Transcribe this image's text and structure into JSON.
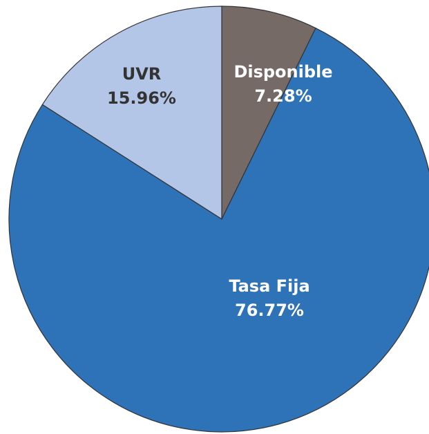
{
  "chart_data": {
    "type": "pie",
    "categories": [
      "Disponible",
      "Tasa Fija",
      "UVR"
    ],
    "values": [
      7.28,
      76.77,
      15.96
    ],
    "value_labels": [
      "7.28%",
      "76.77%",
      "15.96%"
    ],
    "colors": [
      "#756a66",
      "#2e72b8",
      "#b4c6e7"
    ]
  }
}
